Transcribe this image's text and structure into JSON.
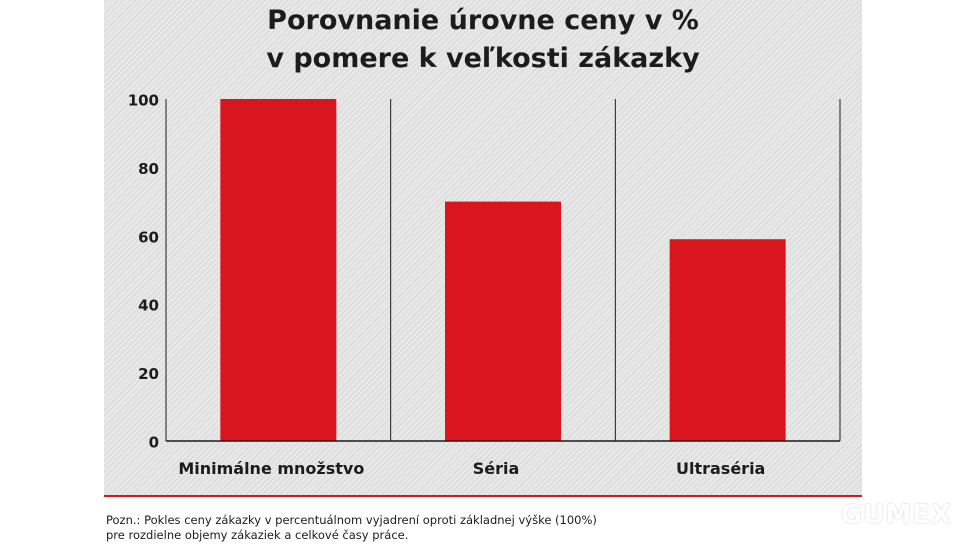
{
  "title_lines": [
    "Porovnanie úrovne ceny v %",
    "v pomere k veľkosti zákazky"
  ],
  "footnote_lines": [
    "Pozn.: Pokles ceny zákazky v percentuálnom vyjadrení oproti základnej výške (100%)",
    "pre rozdielne objemy zákaziek a celkové časy práce."
  ],
  "logo": "GUMEX",
  "colors": {
    "bar": "#d9151e",
    "accent_line": "#d9151e",
    "text": "#1c1c1c"
  },
  "chart_data": {
    "type": "bar",
    "title": "Porovnanie úrovne ceny v % v pomere k veľkosti zákazky",
    "categories": [
      "Minimálne množstvo",
      "Séria",
      "Ultraséria"
    ],
    "values": [
      100,
      70,
      59
    ],
    "ylim": [
      0,
      100
    ],
    "yticks": [
      "0",
      "20",
      "40",
      "60",
      "80",
      "100"
    ],
    "xlabel": "",
    "ylabel": "",
    "grid": false,
    "legend": "none"
  }
}
